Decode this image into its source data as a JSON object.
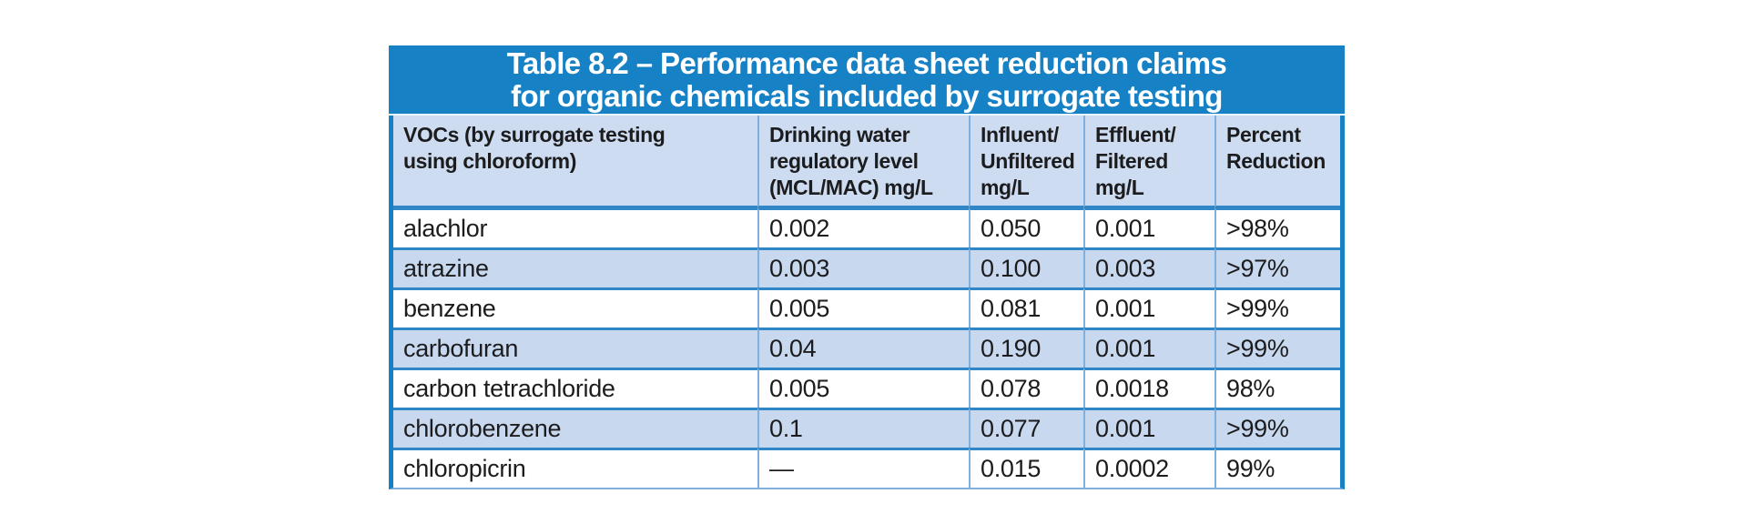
{
  "table": {
    "title": {
      "line1": "Table 8.2 – Performance data sheet reduction claims",
      "line2": "for organic chemicals included by surrogate testing"
    },
    "columns": [
      {
        "id": "vocs",
        "lines": [
          "VOCs (by surrogate testing",
          "using chloroform)"
        ]
      },
      {
        "id": "mcl",
        "lines": [
          "Drinking water",
          "regulatory level",
          "(MCL/MAC) mg/L"
        ]
      },
      {
        "id": "influent",
        "lines": [
          "Influent/",
          "Unfiltered",
          "mg/L"
        ]
      },
      {
        "id": "effluent",
        "lines": [
          "Effluent/",
          "Filtered",
          "mg/L"
        ]
      },
      {
        "id": "reduction",
        "lines": [
          "Percent",
          "Reduction"
        ]
      }
    ],
    "rows": [
      {
        "chemical": "alachlor",
        "mcl": "0.002",
        "influent": "0.050",
        "effluent": "0.001",
        "reduction": ">98%"
      },
      {
        "chemical": "atrazine",
        "mcl": "0.003",
        "influent": "0.100",
        "effluent": "0.003",
        "reduction": ">97%"
      },
      {
        "chemical": "benzene",
        "mcl": "0.005",
        "influent": "0.081",
        "effluent": "0.001",
        "reduction": ">99%"
      },
      {
        "chemical": "carbofuran",
        "mcl": "0.04",
        "influent": "0.190",
        "effluent": "0.001",
        "reduction": ">99%"
      },
      {
        "chemical": "carbon tetrachloride",
        "mcl": "0.005",
        "influent": "0.078",
        "effluent": "0.0018",
        "reduction": "98%"
      },
      {
        "chemical": "chlorobenzene",
        "mcl": "0.1",
        "influent": "0.077",
        "effluent": "0.001",
        "reduction": ">99%"
      },
      {
        "chemical": "chloropicrin",
        "mcl": "—",
        "influent": "0.015",
        "effluent": "0.0002",
        "reduction": "99%"
      }
    ],
    "colors": {
      "title_bar": "#1781c5",
      "header_bg": "#cddcf0",
      "stripe_bg": "#c7d8ef",
      "row_bg": "#ffffff",
      "outer_border": "#1781c5",
      "row_separator": "#2f87c7",
      "cell_separator": "#7fb0e0",
      "text": "#1c1c1e",
      "title_text": "#ffffff"
    }
  }
}
